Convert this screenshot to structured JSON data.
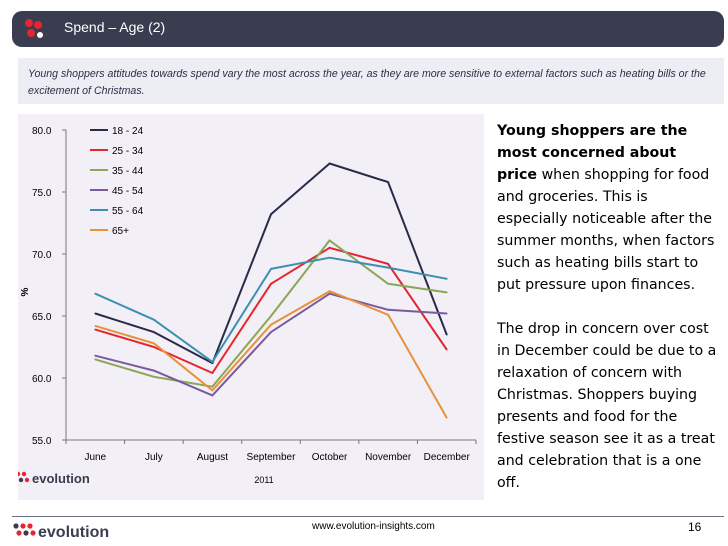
{
  "header": {
    "title": "Spend – Age (2)"
  },
  "intro": "Young shoppers attitudes towards spend vary the most across the year, as they are more sensitive to external factors such as heating bills or the excitement of Christmas.",
  "commentary": {
    "p1_bold": "Young shoppers are the most concerned about price",
    "p1_rest": " when shopping for food and groceries.  This is especially noticeable after the summer months, when factors such as heating bills start to put pressure upon finances.",
    "p2": "The drop in concern over cost in December could be due to a relaxation of concern with Christmas. Shoppers buying presents and food for the festive season see it as a treat and celebration that is a one off."
  },
  "brand": {
    "name": "evolution",
    "accent": "#e3262f",
    "dark": "#3a3d4f"
  },
  "footer": {
    "url": "www.evolution-insights.com",
    "page": "16"
  },
  "chart_data": {
    "type": "line",
    "title": "",
    "xlabel": "2011",
    "ylabel": "%",
    "categories": [
      "June",
      "July",
      "August",
      "September",
      "October",
      "November",
      "December"
    ],
    "ylim": [
      55.0,
      80.0
    ],
    "yticks": [
      "55.0",
      "60.0",
      "65.0",
      "70.0",
      "75.0",
      "80.0"
    ],
    "legend_position": "top-left",
    "series": [
      {
        "name": "18 - 24",
        "color": "#2a2a4a",
        "values": [
          65.2,
          63.7,
          61.2,
          73.2,
          77.3,
          75.8,
          63.5
        ]
      },
      {
        "name": "25 - 34",
        "color": "#e3262f",
        "values": [
          63.9,
          62.5,
          60.4,
          67.6,
          70.5,
          69.2,
          62.3
        ]
      },
      {
        "name": "35 - 44",
        "color": "#8aa656",
        "values": [
          61.5,
          60.1,
          59.3,
          65.0,
          71.1,
          67.6,
          66.9
        ]
      },
      {
        "name": "45 - 54",
        "color": "#7b5a9c",
        "values": [
          61.8,
          60.6,
          58.6,
          63.7,
          66.8,
          65.5,
          65.2
        ]
      },
      {
        "name": "55 - 64",
        "color": "#3d8fb0",
        "values": [
          66.8,
          64.7,
          61.3,
          68.8,
          69.7,
          68.9,
          68.0
        ]
      },
      {
        "name": "65+",
        "color": "#e8913a",
        "values": [
          64.2,
          62.8,
          59.0,
          64.3,
          67.0,
          65.1,
          56.8
        ]
      }
    ]
  }
}
